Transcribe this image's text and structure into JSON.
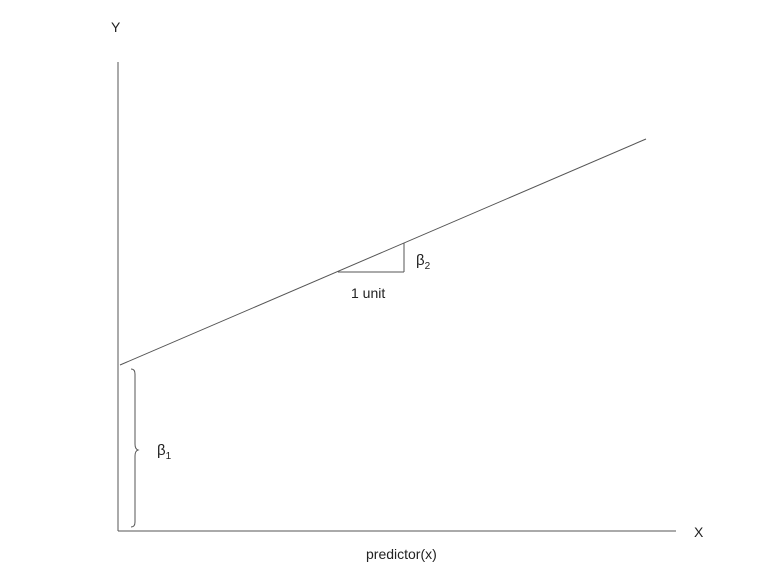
{
  "diagram": {
    "y_axis_label": "Y",
    "x_axis_label": "X",
    "x_axis_caption": "predictor(x)",
    "unit_label": "1 unit",
    "slope_label": {
      "symbol": "β",
      "subscript": "2"
    },
    "intercept_label": {
      "symbol": "β",
      "subscript": "1"
    },
    "line_color": "#555555"
  }
}
